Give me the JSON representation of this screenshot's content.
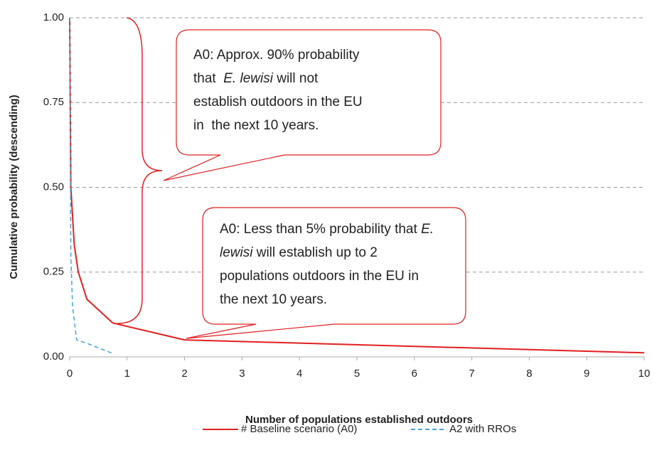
{
  "chart_data": {
    "type": "line",
    "x_label": "Number of populations established outdoors",
    "y_label": "Cumulative probability (descending)",
    "xlim": [
      0,
      10
    ],
    "ylim": [
      0,
      1
    ],
    "xticks": [
      0,
      1,
      2,
      3,
      4,
      5,
      6,
      7,
      8,
      9,
      10
    ],
    "yticks": [
      {
        "value": 0,
        "label": "0.00"
      },
      {
        "value": 0.25,
        "label": "0.25"
      },
      {
        "value": 0.5,
        "label": "0.50"
      },
      {
        "value": 0.75,
        "label": "0.75"
      },
      {
        "value": 1,
        "label": "1.00"
      }
    ],
    "grid": true,
    "legend": "bottom",
    "series": [
      {
        "name": "# Baseline scenario (A0)",
        "color": "#e02020",
        "dash": "solid",
        "x": [
          0,
          0.02,
          0.08,
          0.15,
          0.3,
          0.75,
          2,
          10
        ],
        "values": [
          1.0,
          0.5,
          0.33,
          0.25,
          0.17,
          0.1,
          0.05,
          0.012
        ]
      },
      {
        "name": "A2 with RROs",
        "color": "#4aa3d6",
        "dash": "dashed",
        "x": [
          0,
          0.02,
          0.05,
          0.12,
          0.3,
          0.75
        ],
        "values": [
          1.0,
          0.3,
          0.15,
          0.05,
          0.04,
          0.01
        ]
      }
    ],
    "annotations": [
      {
        "lines": [
          [
            {
              "text": "A0: Approx. 90% probability"
            }
          ],
          [
            {
              "text": "that  "
            },
            {
              "text": "E. lewisi",
              "italic": true
            },
            {
              "text": " will not"
            }
          ],
          [
            {
              "text": "establish outdoors in the EU"
            }
          ],
          [
            {
              "text": "in  the next 10 years."
            }
          ]
        ]
      },
      {
        "lines": [
          [
            {
              "text": "A0: Less than 5% probability that "
            },
            {
              "text": "E.",
              "italic": true
            }
          ],
          [
            {
              "text": "lewisi",
              "italic": true
            },
            {
              "text": " will establish up to 2"
            }
          ],
          [
            {
              "text": "populations outdoors in the EU in"
            }
          ],
          [
            {
              "text": "the next 10 years."
            }
          ]
        ]
      }
    ]
  }
}
